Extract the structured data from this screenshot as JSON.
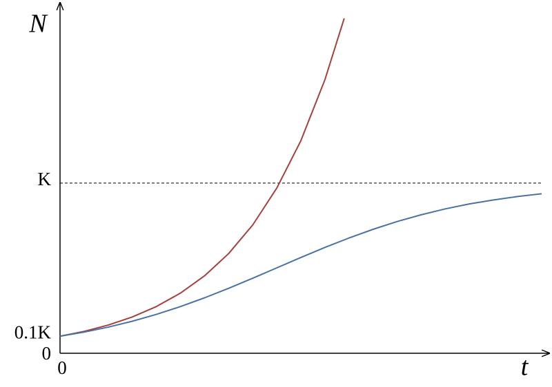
{
  "chart_data": {
    "type": "line",
    "x_label": "t",
    "y_label": "N",
    "xlim": [
      0,
      10
    ],
    "xticks": [
      0
    ],
    "ylim": [
      0,
      2.06
    ],
    "yticks": [
      0,
      {
        "value": 0.1,
        "label": "0.1K"
      },
      {
        "value": 1,
        "label": "K"
      }
    ],
    "hlines": [
      1
    ],
    "hline_style": "dashed",
    "series": [
      {
        "color": "#a2413d",
        "x": [
          0,
          0.5,
          1,
          1.5,
          2,
          2.5,
          3,
          3.5,
          4,
          4.5,
          5,
          5.5,
          5.9
        ],
        "values": [
          0.1,
          0.1287,
          0.1657,
          0.2133,
          0.2746,
          0.3534,
          0.4549,
          0.5856,
          0.7538,
          0.9704,
          1.249,
          1.608,
          1.968
        ]
      },
      {
        "color": "#4a71a5",
        "x": [
          0,
          0.5,
          1,
          1.5,
          2,
          2.5,
          3,
          3.5,
          4,
          4.5,
          5,
          5.5,
          6,
          6.5,
          7,
          7.5,
          8,
          8.5,
          9,
          9.5,
          10
        ],
        "values": [
          0.1,
          0.1243,
          0.1535,
          0.1881,
          0.2284,
          0.2744,
          0.3258,
          0.3817,
          0.4409,
          0.5018,
          0.5628,
          0.6218,
          0.6774,
          0.7285,
          0.7742,
          0.8139,
          0.8487,
          0.8776,
          0.9011,
          0.9212,
          0.9372
        ]
      }
    ]
  }
}
